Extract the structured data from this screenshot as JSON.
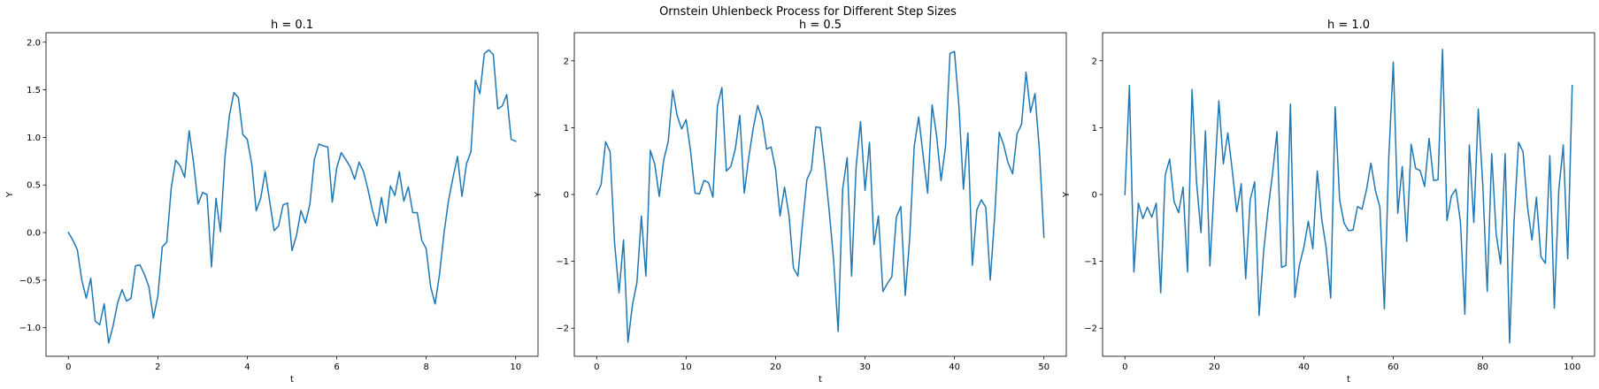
{
  "figure": {
    "suptitle": "Ornstein Uhlenbeck Process for Different Step Sizes"
  },
  "chart_data": [
    {
      "type": "line",
      "title": "h = 0.1",
      "xlabel": "t",
      "ylabel": "Y",
      "xlim": [
        -0.5,
        10.5
      ],
      "ylim": [
        -1.3,
        2.1
      ],
      "xticks": [
        0,
        2,
        4,
        6,
        8,
        10
      ],
      "yticks": [
        -1.0,
        -0.5,
        0.0,
        0.5,
        1.0,
        1.5,
        2.0
      ],
      "ytick_labels": [
        "−1.0",
        "−0.5",
        "0.0",
        "0.5",
        "1.0",
        "1.5",
        "2.0"
      ],
      "color": "#1f77b4",
      "series": [
        {
          "x": [
            0,
            0.1,
            0.2,
            0.3,
            0.4,
            0.5,
            0.6,
            0.7,
            0.8,
            0.9,
            1.0,
            1.1,
            1.2,
            1.3,
            1.4,
            1.5,
            1.6,
            1.7,
            1.8,
            1.9,
            2.0,
            2.1,
            2.2,
            2.3,
            2.4,
            2.5,
            2.6,
            2.7,
            2.8,
            2.9,
            3.0,
            3.1,
            3.2,
            3.3,
            3.4,
            3.5,
            3.6,
            3.7,
            3.8,
            3.9,
            4.0,
            4.1,
            4.2,
            4.3,
            4.4,
            4.5,
            4.6,
            4.7,
            4.8,
            4.9,
            5.0,
            5.1,
            5.2,
            5.3,
            5.4,
            5.5,
            5.6,
            5.7,
            5.8,
            5.9,
            6.0,
            6.1,
            6.2,
            6.3,
            6.4,
            6.5,
            6.6,
            6.7,
            6.8,
            6.9,
            7.0,
            7.1,
            7.2,
            7.3,
            7.4,
            7.5,
            7.6,
            7.7,
            7.8,
            7.9,
            8.0,
            8.1,
            8.2,
            8.3,
            8.4,
            8.5,
            8.6,
            8.7,
            8.8,
            8.9,
            9.0,
            9.1,
            9.2,
            9.3,
            9.4,
            9.5,
            9.6,
            9.7,
            9.8,
            9.9,
            10.0
          ],
          "y": [
            0.0,
            -0.08,
            -0.18,
            -0.5,
            -0.69,
            -0.48,
            -0.93,
            -0.97,
            -0.75,
            -1.16,
            -0.98,
            -0.74,
            -0.6,
            -0.72,
            -0.69,
            -0.35,
            -0.34,
            -0.44,
            -0.57,
            -0.9,
            -0.67,
            -0.15,
            -0.1,
            0.47,
            0.76,
            0.7,
            0.58,
            1.07,
            0.73,
            0.3,
            0.42,
            0.4,
            -0.36,
            0.36,
            0.01,
            0.79,
            1.23,
            1.47,
            1.42,
            1.03,
            0.98,
            0.72,
            0.23,
            0.36,
            0.64,
            0.33,
            0.02,
            0.07,
            0.29,
            0.31,
            -0.19,
            -0.03,
            0.23,
            0.1,
            0.3,
            0.77,
            0.93,
            0.91,
            0.9,
            0.32,
            0.68,
            0.84,
            0.77,
            0.69,
            0.56,
            0.74,
            0.64,
            0.45,
            0.23,
            0.07,
            0.37,
            0.1,
            0.49,
            0.39,
            0.64,
            0.33,
            0.48,
            0.21,
            0.21,
            -0.08,
            -0.17,
            -0.57,
            -0.75,
            -0.43,
            0.0,
            0.34,
            0.58,
            0.8,
            0.38,
            0.72,
            0.85,
            1.6,
            1.46,
            1.88,
            1.92,
            1.87,
            1.3,
            1.33,
            1.45,
            0.98,
            0.96
          ]
        }
      ]
    },
    {
      "type": "line",
      "title": "h = 0.5",
      "xlabel": "t",
      "ylabel": "Y",
      "xlim": [
        -2.5,
        52.5
      ],
      "ylim": [
        -2.42,
        2.42
      ],
      "xticks": [
        0,
        10,
        20,
        30,
        40,
        50
      ],
      "yticks": [
        -2,
        -1,
        0,
        1,
        2
      ],
      "ytick_labels": [
        "−2",
        "−1",
        "0",
        "1",
        "2"
      ],
      "color": "#1f77b4",
      "series": [
        {
          "x": [
            0,
            0.5,
            1.0,
            1.5,
            2.0,
            2.5,
            3.0,
            3.5,
            4.0,
            4.5,
            5.0,
            5.5,
            6.0,
            6.5,
            7.0,
            7.5,
            8.0,
            8.5,
            9.0,
            9.5,
            10.0,
            10.5,
            11.0,
            11.5,
            12.0,
            12.5,
            13.0,
            13.5,
            14.0,
            14.5,
            15.0,
            15.5,
            16.0,
            16.5,
            17.0,
            17.5,
            18.0,
            18.5,
            19.0,
            19.5,
            20.0,
            20.5,
            21.0,
            21.5,
            22.0,
            22.5,
            23.0,
            23.5,
            24.0,
            24.5,
            25.0,
            25.5,
            26.0,
            26.5,
            27.0,
            27.5,
            28.0,
            28.5,
            29.0,
            29.5,
            30.0,
            30.5,
            31.0,
            31.5,
            32.0,
            32.5,
            33.0,
            33.5,
            34.0,
            34.5,
            35.0,
            35.5,
            36.0,
            36.5,
            37.0,
            37.5,
            38.0,
            38.5,
            39.0,
            39.5,
            40.0,
            40.5,
            41.0,
            41.5,
            42.0,
            42.5,
            43.0,
            43.5,
            44.0,
            44.5,
            45.0,
            45.5,
            46.0,
            46.5,
            47.0,
            47.5,
            48.0,
            48.5,
            49.0,
            49.5,
            50.0
          ],
          "y": [
            0.0,
            0.15,
            0.79,
            0.64,
            -0.72,
            -1.47,
            -0.68,
            -2.21,
            -1.65,
            -1.32,
            -0.32,
            -1.22,
            0.66,
            0.45,
            -0.03,
            0.52,
            0.79,
            1.56,
            1.18,
            0.98,
            1.12,
            0.65,
            0.02,
            0.01,
            0.21,
            0.18,
            -0.04,
            1.32,
            1.6,
            0.35,
            0.42,
            0.68,
            1.18,
            0.02,
            0.55,
            0.99,
            1.33,
            1.13,
            0.68,
            0.71,
            0.38,
            -0.32,
            0.11,
            -0.31,
            -1.1,
            -1.22,
            -0.45,
            0.22,
            0.37,
            1.01,
            1.0,
            0.42,
            -0.25,
            -1.0,
            -2.05,
            0.08,
            0.55,
            -1.22,
            0.41,
            1.09,
            0.06,
            0.78,
            -0.75,
            -0.32,
            -1.45,
            -1.33,
            -1.23,
            -0.34,
            -0.18,
            -1.51,
            -0.64,
            0.72,
            1.16,
            0.58,
            0.02,
            1.34,
            0.88,
            0.21,
            0.72,
            2.11,
            2.14,
            1.32,
            0.08,
            0.92,
            -1.06,
            -0.23,
            -0.08,
            -0.19,
            -1.28,
            -0.32,
            0.93,
            0.74,
            0.47,
            0.31,
            0.91,
            1.05,
            1.83,
            1.23,
            1.51,
            0.65,
            -0.64
          ]
        }
      ]
    },
    {
      "type": "line",
      "title": "h = 1.0",
      "xlabel": "t",
      "ylabel": "Y",
      "xlim": [
        -5,
        105
      ],
      "ylim": [
        -2.42,
        2.42
      ],
      "xticks": [
        0,
        20,
        40,
        60,
        80,
        100
      ],
      "yticks": [
        -2,
        -1,
        0,
        1,
        2
      ],
      "ytick_labels": [
        "−2",
        "−1",
        "0",
        "1",
        "2"
      ],
      "color": "#1f77b4",
      "series": [
        {
          "x": [
            0,
            1,
            2,
            3,
            4,
            5,
            6,
            7,
            8,
            9,
            10,
            11,
            12,
            13,
            14,
            15,
            16,
            17,
            18,
            19,
            20,
            21,
            22,
            23,
            24,
            25,
            26,
            27,
            28,
            29,
            30,
            31,
            32,
            33,
            34,
            35,
            36,
            37,
            38,
            39,
            40,
            41,
            42,
            43,
            44,
            45,
            46,
            47,
            48,
            49,
            50,
            51,
            52,
            53,
            54,
            55,
            56,
            57,
            58,
            59,
            60,
            61,
            62,
            63,
            64,
            65,
            66,
            67,
            68,
            69,
            70,
            71,
            72,
            73,
            74,
            75,
            76,
            77,
            78,
            79,
            80,
            81,
            82,
            83,
            84,
            85,
            86,
            87,
            88,
            89,
            90,
            91,
            92,
            93,
            94,
            95,
            96,
            97,
            98,
            99,
            100
          ],
          "y": [
            0.0,
            1.63,
            -1.16,
            -0.13,
            -0.36,
            -0.19,
            -0.34,
            -0.13,
            -1.47,
            0.29,
            0.53,
            -0.11,
            -0.27,
            0.11,
            -1.16,
            1.57,
            0.19,
            -0.57,
            0.95,
            -1.07,
            0.19,
            1.4,
            0.46,
            0.92,
            0.36,
            -0.26,
            0.16,
            -1.26,
            -0.08,
            0.19,
            -1.81,
            -0.86,
            -0.22,
            0.31,
            0.94,
            -1.09,
            -1.06,
            1.35,
            -1.54,
            -1.06,
            -0.79,
            -0.4,
            -0.81,
            0.35,
            -0.37,
            -0.8,
            -1.55,
            1.31,
            -0.08,
            -0.43,
            -0.54,
            -0.53,
            -0.18,
            -0.22,
            0.07,
            0.47,
            0.06,
            -0.19,
            -1.71,
            0.57,
            1.98,
            -0.28,
            0.42,
            -0.7,
            0.75,
            0.39,
            0.36,
            0.12,
            0.84,
            0.21,
            0.22,
            2.17,
            -0.39,
            -0.02,
            0.08,
            -0.4,
            -1.79,
            0.74,
            -0.42,
            1.28,
            0.15,
            -1.45,
            0.61,
            -0.59,
            -1.04,
            0.61,
            -2.22,
            -0.4,
            0.78,
            0.64,
            -0.18,
            -0.68,
            -0.04,
            -0.93,
            -1.03,
            0.58,
            -1.7,
            0.07,
            0.74,
            -0.96,
            1.63
          ]
        }
      ]
    }
  ]
}
